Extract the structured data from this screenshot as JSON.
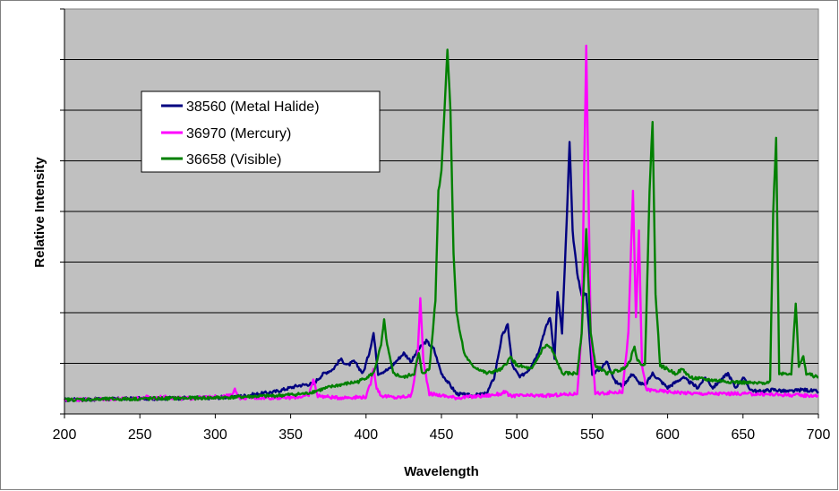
{
  "chart_data": {
    "type": "line",
    "title": "",
    "xlabel": "Wavelength",
    "ylabel": "Relative Intensity",
    "xlim": [
      200,
      700
    ],
    "ylim": [
      0,
      1
    ],
    "x_ticks": [
      200,
      250,
      300,
      350,
      400,
      450,
      500,
      550,
      600,
      650,
      700
    ],
    "y_tick_labels": "none",
    "y_gridlines": 7,
    "grid": true,
    "legend_position": "upper-left",
    "plot_background": "#c0c0c0",
    "series": [
      {
        "name": "38560 (Metal Halide)",
        "color": "#000080",
        "points": [
          [
            200,
            0.035
          ],
          [
            250,
            0.038
          ],
          [
            300,
            0.04
          ],
          [
            320,
            0.045
          ],
          [
            340,
            0.055
          ],
          [
            355,
            0.07
          ],
          [
            365,
            0.075
          ],
          [
            372,
            0.1
          ],
          [
            378,
            0.11
          ],
          [
            383,
            0.135
          ],
          [
            388,
            0.12
          ],
          [
            392,
            0.13
          ],
          [
            398,
            0.1
          ],
          [
            402,
            0.15
          ],
          [
            405,
            0.2
          ],
          [
            408,
            0.1
          ],
          [
            415,
            0.11
          ],
          [
            420,
            0.13
          ],
          [
            425,
            0.15
          ],
          [
            430,
            0.13
          ],
          [
            435,
            0.16
          ],
          [
            440,
            0.18
          ],
          [
            445,
            0.16
          ],
          [
            450,
            0.1
          ],
          [
            460,
            0.05
          ],
          [
            470,
            0.045
          ],
          [
            480,
            0.05
          ],
          [
            485,
            0.09
          ],
          [
            490,
            0.19
          ],
          [
            494,
            0.22
          ],
          [
            497,
            0.12
          ],
          [
            502,
            0.09
          ],
          [
            508,
            0.11
          ],
          [
            514,
            0.15
          ],
          [
            518,
            0.2
          ],
          [
            522,
            0.24
          ],
          [
            525,
            0.14
          ],
          [
            527,
            0.3
          ],
          [
            530,
            0.2
          ],
          [
            533,
            0.47
          ],
          [
            535,
            0.67
          ],
          [
            537,
            0.45
          ],
          [
            540,
            0.35
          ],
          [
            543,
            0.29
          ],
          [
            546,
            0.3
          ],
          [
            550,
            0.1
          ],
          [
            555,
            0.11
          ],
          [
            560,
            0.13
          ],
          [
            565,
            0.08
          ],
          [
            570,
            0.07
          ],
          [
            577,
            0.1
          ],
          [
            580,
            0.08
          ],
          [
            585,
            0.07
          ],
          [
            590,
            0.1
          ],
          [
            600,
            0.065
          ],
          [
            610,
            0.09
          ],
          [
            620,
            0.065
          ],
          [
            625,
            0.09
          ],
          [
            630,
            0.065
          ],
          [
            640,
            0.1
          ],
          [
            645,
            0.065
          ],
          [
            650,
            0.09
          ],
          [
            655,
            0.06
          ],
          [
            660,
            0.055
          ],
          [
            670,
            0.06
          ],
          [
            680,
            0.055
          ],
          [
            690,
            0.06
          ],
          [
            700,
            0.055
          ]
        ]
      },
      {
        "name": "36970 (Mercury)",
        "color": "#ff00ff",
        "points": [
          [
            200,
            0.035
          ],
          [
            250,
            0.038
          ],
          [
            255,
            0.042
          ],
          [
            260,
            0.038
          ],
          [
            265,
            0.042
          ],
          [
            280,
            0.038
          ],
          [
            300,
            0.042
          ],
          [
            310,
            0.045
          ],
          [
            313,
            0.06
          ],
          [
            316,
            0.04
          ],
          [
            330,
            0.04
          ],
          [
            350,
            0.04
          ],
          [
            362,
            0.045
          ],
          [
            365,
            0.085
          ],
          [
            368,
            0.045
          ],
          [
            380,
            0.04
          ],
          [
            400,
            0.042
          ],
          [
            403,
            0.075
          ],
          [
            405,
            0.115
          ],
          [
            407,
            0.065
          ],
          [
            410,
            0.045
          ],
          [
            420,
            0.04
          ],
          [
            430,
            0.045
          ],
          [
            434,
            0.13
          ],
          [
            436,
            0.285
          ],
          [
            438,
            0.13
          ],
          [
            442,
            0.05
          ],
          [
            460,
            0.04
          ],
          [
            480,
            0.045
          ],
          [
            490,
            0.05
          ],
          [
            492,
            0.055
          ],
          [
            495,
            0.045
          ],
          [
            520,
            0.045
          ],
          [
            540,
            0.05
          ],
          [
            543,
            0.2
          ],
          [
            546,
            0.91
          ],
          [
            549,
            0.2
          ],
          [
            552,
            0.05
          ],
          [
            570,
            0.055
          ],
          [
            574,
            0.2
          ],
          [
            577,
            0.55
          ],
          [
            579,
            0.24
          ],
          [
            581,
            0.45
          ],
          [
            583,
            0.12
          ],
          [
            586,
            0.06
          ],
          [
            600,
            0.055
          ],
          [
            620,
            0.05
          ],
          [
            650,
            0.05
          ],
          [
            700,
            0.045
          ]
        ]
      },
      {
        "name": "36658 (Visible)",
        "color": "#008000",
        "points": [
          [
            200,
            0.035
          ],
          [
            300,
            0.04
          ],
          [
            340,
            0.045
          ],
          [
            360,
            0.05
          ],
          [
            380,
            0.07
          ],
          [
            395,
            0.08
          ],
          [
            405,
            0.1
          ],
          [
            410,
            0.17
          ],
          [
            412,
            0.23
          ],
          [
            414,
            0.17
          ],
          [
            418,
            0.1
          ],
          [
            425,
            0.09
          ],
          [
            432,
            0.1
          ],
          [
            435,
            0.15
          ],
          [
            437,
            0.1
          ],
          [
            442,
            0.11
          ],
          [
            446,
            0.28
          ],
          [
            448,
            0.55
          ],
          [
            450,
            0.6
          ],
          [
            452,
            0.75
          ],
          [
            454,
            0.9
          ],
          [
            456,
            0.75
          ],
          [
            458,
            0.4
          ],
          [
            460,
            0.25
          ],
          [
            465,
            0.15
          ],
          [
            470,
            0.12
          ],
          [
            480,
            0.1
          ],
          [
            490,
            0.11
          ],
          [
            496,
            0.14
          ],
          [
            500,
            0.12
          ],
          [
            510,
            0.11
          ],
          [
            517,
            0.16
          ],
          [
            520,
            0.17
          ],
          [
            523,
            0.16
          ],
          [
            530,
            0.1
          ],
          [
            540,
            0.1
          ],
          [
            543,
            0.2
          ],
          [
            546,
            0.455
          ],
          [
            549,
            0.2
          ],
          [
            552,
            0.12
          ],
          [
            560,
            0.1
          ],
          [
            570,
            0.11
          ],
          [
            575,
            0.13
          ],
          [
            578,
            0.17
          ],
          [
            580,
            0.13
          ],
          [
            585,
            0.12
          ],
          [
            588,
            0.55
          ],
          [
            590,
            0.72
          ],
          [
            592,
            0.3
          ],
          [
            595,
            0.12
          ],
          [
            605,
            0.1
          ],
          [
            610,
            0.11
          ],
          [
            615,
            0.09
          ],
          [
            625,
            0.085
          ],
          [
            640,
            0.08
          ],
          [
            660,
            0.075
          ],
          [
            668,
            0.08
          ],
          [
            670,
            0.5
          ],
          [
            672,
            0.68
          ],
          [
            674,
            0.1
          ],
          [
            682,
            0.1
          ],
          [
            685,
            0.27
          ],
          [
            687,
            0.12
          ],
          [
            690,
            0.14
          ],
          [
            692,
            0.1
          ],
          [
            700,
            0.09
          ]
        ]
      }
    ]
  }
}
